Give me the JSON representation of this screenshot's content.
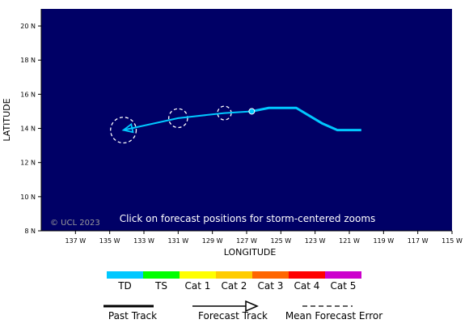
{
  "chart_data": {
    "type": "line",
    "title": "",
    "xlabel": "LONGITUDE",
    "ylabel": "LATITUDE",
    "x_axis": {
      "min_west": 139,
      "max_west": 115,
      "ticks": [
        137,
        135,
        133,
        131,
        129,
        127,
        125,
        123,
        121,
        119,
        117,
        115
      ],
      "tick_labels": [
        "137 W",
        "135 W",
        "133 W",
        "131 W",
        "129 W",
        "127 W",
        "125 W",
        "123 W",
        "121 W",
        "119 W",
        "117 W",
        "115 W"
      ]
    },
    "y_axis": {
      "min": 8,
      "max": 21,
      "ticks": [
        8,
        10,
        12,
        14,
        16,
        18,
        20
      ],
      "tick_labels": [
        "8 N",
        "10 N",
        "12 N",
        "14 N",
        "16 N",
        "18 N",
        "20 N"
      ]
    },
    "past_track": {
      "name": "Past Track",
      "category": "TD",
      "points": [
        {
          "lon_w": 120.3,
          "lat": 13.9
        },
        {
          "lon_w": 121.7,
          "lat": 13.9
        },
        {
          "lon_w": 122.6,
          "lat": 14.3
        },
        {
          "lon_w": 124.1,
          "lat": 15.2
        },
        {
          "lon_w": 125.7,
          "lat": 15.2
        },
        {
          "lon_w": 126.7,
          "lat": 15.0
        }
      ]
    },
    "forecast_track": {
      "name": "Forecast Track",
      "category": "TD",
      "points": [
        {
          "lon_w": 126.7,
          "lat": 15.0
        },
        {
          "lon_w": 128.3,
          "lat": 14.9
        },
        {
          "lon_w": 131.0,
          "lat": 14.6
        },
        {
          "lon_w": 134.2,
          "lat": 13.9
        }
      ]
    },
    "current_position": {
      "lon_w": 126.7,
      "lat": 15.0
    },
    "error_circles": [
      {
        "lon_w": 128.3,
        "lat": 14.9,
        "radius_deg": 0.4
      },
      {
        "lon_w": 131.0,
        "lat": 14.6,
        "radius_deg": 0.55
      },
      {
        "lon_w": 134.2,
        "lat": 13.9,
        "radius_deg": 0.75
      }
    ],
    "categories": [
      {
        "label": "TD",
        "color": "#00c8ff"
      },
      {
        "label": "TS",
        "color": "#00ff00"
      },
      {
        "label": "Cat 1",
        "color": "#ffff00"
      },
      {
        "label": "Cat 2",
        "color": "#ffcc00"
      },
      {
        "label": "Cat 3",
        "color": "#ff6600"
      },
      {
        "label": "Cat 4",
        "color": "#ff0000"
      },
      {
        "label": "Cat 5",
        "color": "#cc00cc"
      }
    ],
    "legend": {
      "past_track": "Past Track",
      "forecast_track": "Forecast Track",
      "mean_error": "Mean Forecast Error"
    },
    "grid": false,
    "background_color": "#000066"
  },
  "map": {
    "copyright": "© UCL 2023",
    "instruction": "Click on forecast positions for storm-centered zooms"
  }
}
